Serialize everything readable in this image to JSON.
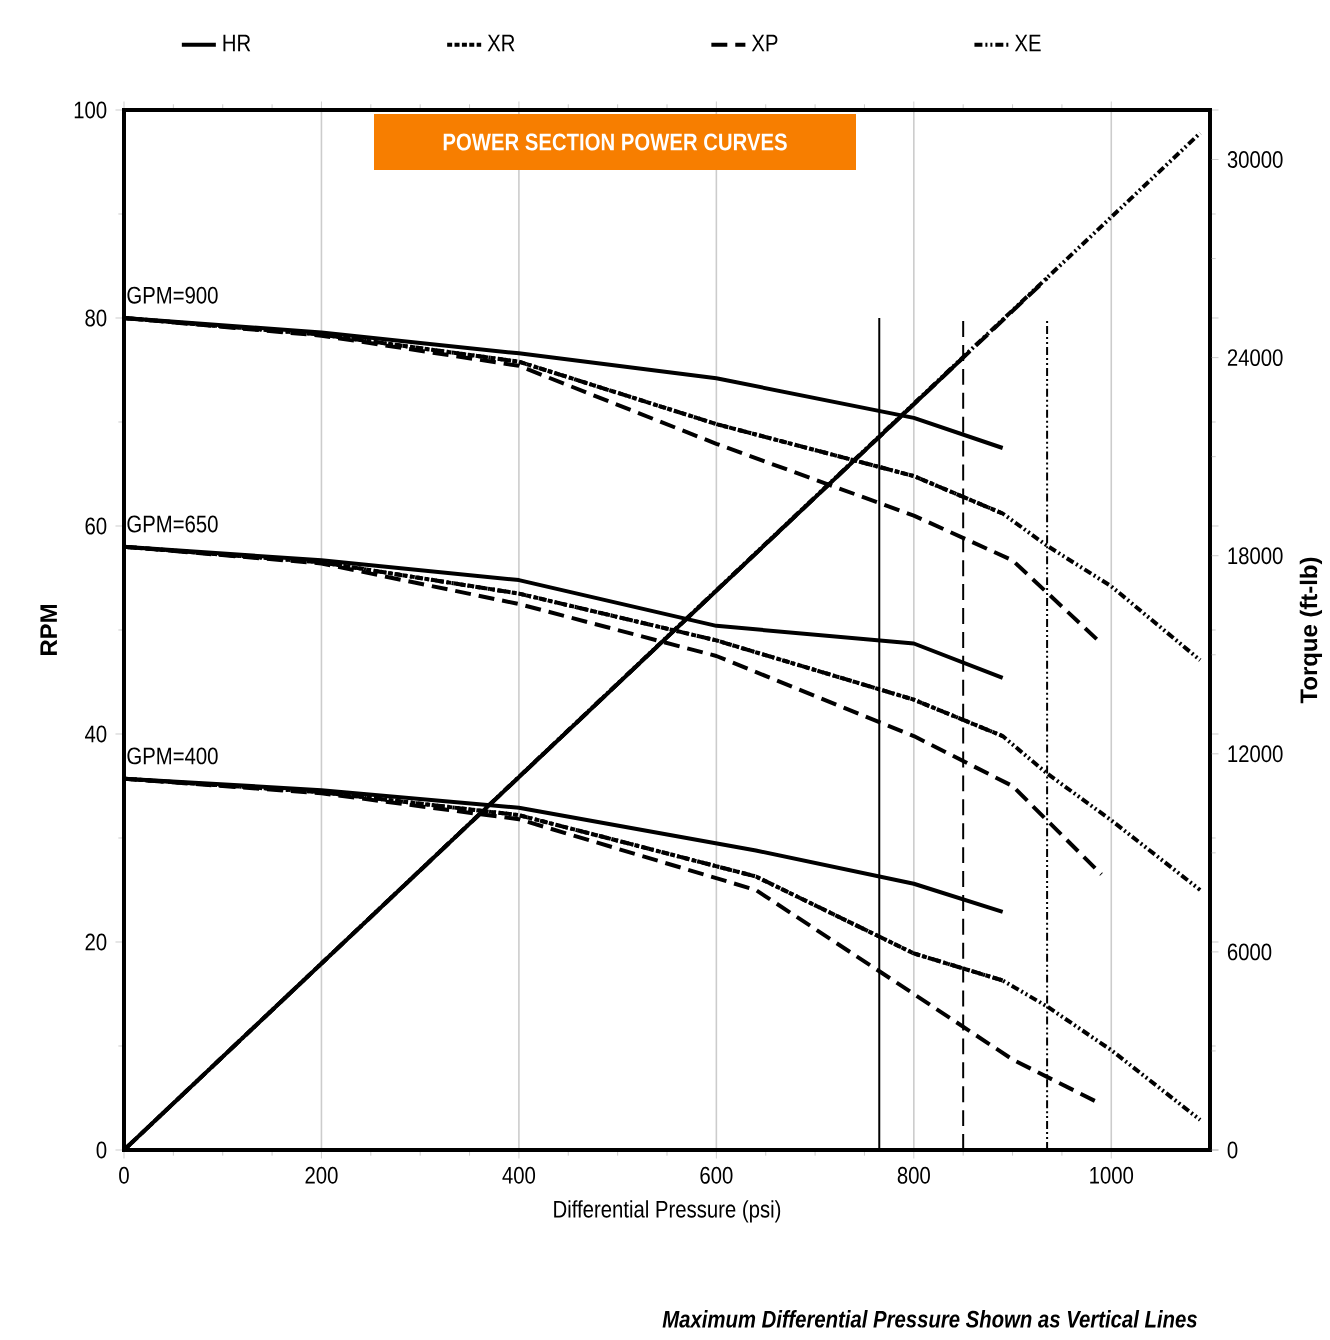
{
  "chart_data": {
    "type": "line",
    "title": "POWER SECTION POWER CURVES",
    "xlabel": "Differential Pressure (psi)",
    "ylabel": "RPM",
    "y2label": "Torque (ft-lb)",
    "xlim": [
      0,
      1100
    ],
    "xticks": [
      0,
      200,
      400,
      600,
      800,
      1000
    ],
    "ylim": [
      0,
      100
    ],
    "yticks": [
      0,
      20,
      40,
      60,
      80,
      100
    ],
    "y2lim": [
      0,
      31500
    ],
    "y2ticks": [
      0,
      6000,
      12000,
      18000,
      24000,
      30000
    ],
    "grid": "x",
    "legend": "top",
    "series": [
      {
        "name": "HR",
        "color": "#000000",
        "line_style": "solid",
        "x": [
          0,
          200,
          400,
          600,
          800,
          890
        ],
        "values": [
          80,
          78.6,
          76.6,
          74.2,
          70.4,
          67.5
        ]
      },
      {
        "name": "XR",
        "color": "#000000",
        "line_style": "dotted",
        "x": [
          0,
          200,
          400,
          600,
          800,
          890
        ],
        "values": [
          80,
          78.4,
          75.8,
          69.8,
          64.8,
          61.2
        ]
      },
      {
        "name": "XP",
        "color": "#000000",
        "line_style": "dashed",
        "x": [
          0,
          200,
          400,
          600,
          800,
          900,
          990
        ],
        "values": [
          80,
          78.3,
          75.4,
          67.9,
          61,
          56.7,
          48.7
        ]
      },
      {
        "name": "XE",
        "color": "#000000",
        "line_style": "dashdotdot",
        "x": [
          0,
          200,
          400,
          600,
          800,
          890,
          935,
          1000,
          1090
        ],
        "values": [
          80,
          78.4,
          75.8,
          69.8,
          64.8,
          61.2,
          58.1,
          54.2,
          47.1
        ]
      },
      {
        "color": "#000000",
        "line_style": "solid",
        "x": [
          0,
          200,
          400,
          600,
          800,
          890
        ],
        "values": [
          58,
          56.7,
          54.8,
          50.4,
          48.7,
          45.4
        ]
      },
      {
        "color": "#000000",
        "line_style": "dotted",
        "x": [
          0,
          200,
          400,
          600,
          800,
          890
        ],
        "values": [
          58,
          56.5,
          53.5,
          49,
          43.3,
          39.8
        ]
      },
      {
        "color": "#000000",
        "line_style": "dashed",
        "x": [
          0,
          200,
          400,
          600,
          800,
          900,
          990
        ],
        "values": [
          58,
          56.4,
          52.5,
          47.5,
          39.8,
          35,
          26.5
        ]
      },
      {
        "color": "#000000",
        "line_style": "dashdotdot",
        "x": [
          0,
          200,
          400,
          600,
          800,
          890,
          935,
          1000,
          1090
        ],
        "values": [
          58,
          56.5,
          53.5,
          49,
          43.3,
          39.8,
          36.2,
          31.7,
          25
        ]
      },
      {
        "color": "#000000",
        "line_style": "solid",
        "x": [
          0,
          200,
          400,
          640,
          800,
          890
        ],
        "values": [
          35.7,
          34.6,
          32.9,
          28.8,
          25.6,
          22.9
        ]
      },
      {
        "color": "#000000",
        "line_style": "dotted",
        "x": [
          0,
          200,
          400,
          640,
          800,
          890
        ],
        "values": [
          35.7,
          34.4,
          32.2,
          26.3,
          18.9,
          16.3
        ]
      },
      {
        "color": "#000000",
        "line_style": "dashed",
        "x": [
          0,
          200,
          400,
          640,
          800,
          900,
          990
        ],
        "values": [
          35.7,
          34.3,
          31.8,
          25,
          15,
          8.7,
          4.4
        ]
      },
      {
        "color": "#000000",
        "line_style": "dashdotdot",
        "x": [
          0,
          200,
          400,
          640,
          800,
          890,
          935,
          1000,
          1090
        ],
        "values": [
          35.7,
          34.4,
          32.2,
          26.3,
          18.9,
          16.3,
          13.8,
          9.6,
          2.9
        ]
      },
      {
        "color": "#000000",
        "line_style": "dashdotdot",
        "axis": "y2",
        "x": [
          0,
          1090
        ],
        "values": [
          0,
          30800
        ]
      },
      {
        "color": "#000000",
        "line_style": "dashed",
        "axis": "y2",
        "x": [
          0,
          935
        ],
        "values": [
          0,
          26400
        ]
      },
      {
        "color": "#000000",
        "line_style": "solid",
        "axis": "y2",
        "x": [
          0,
          850
        ],
        "values": [
          0,
          24000
        ]
      }
    ],
    "ref_lines": [
      {
        "axis": "x",
        "value": 765,
        "line_style": "solid",
        "color": "#000000"
      },
      {
        "axis": "x",
        "value": 850,
        "line_style": "dashed",
        "color": "#000000"
      },
      {
        "axis": "x",
        "value": 935,
        "line_style": "dashdotdot",
        "color": "#000000"
      }
    ],
    "annotations": [
      "GPM=900",
      "GPM=650",
      "GPM=400",
      "Maximum Differential Pressure Shown as Vertical Lines"
    ]
  }
}
